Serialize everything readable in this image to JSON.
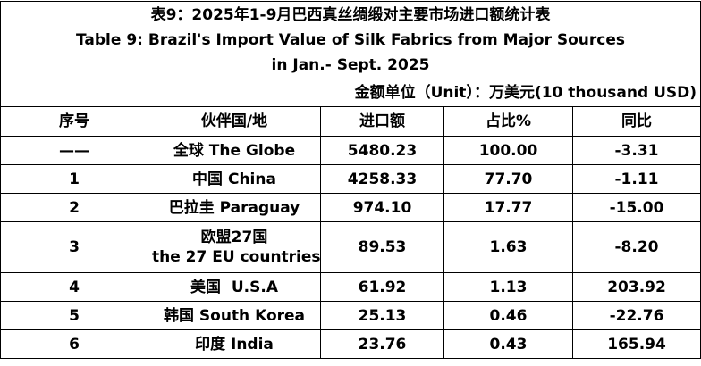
{
  "table": {
    "title": [
      "表9：2025年1-9月巴西真丝绸缎对主要市场进口额统计表",
      "Table 9: Brazil's Import Value of Silk Fabrics from Major Sources",
      "in Jan.- Sept. 2025"
    ],
    "unit": "金额单位（Unit）：万美元(10 thousand USD)",
    "header": [
      "序号",
      "伙伴国/地",
      "进口额",
      "占比%",
      "同比"
    ],
    "rows": [
      [
        "——",
        "全球 The Globe",
        "5480.23",
        "100.00",
        "-3.31"
      ],
      [
        "1",
        "中国 China",
        "4258.33",
        "77.70",
        "-1.11"
      ],
      [
        "2",
        "巴拉圭 Paraguay",
        "974.10",
        "17.77",
        "-15.00"
      ],
      [
        "3",
        [
          "欧盟27国",
          "the 27 EU countries"
        ],
        "89.53",
        "1.63",
        "-8.20"
      ],
      [
        "4",
        "美国  U.S.A",
        "61.92",
        "1.13",
        "203.92"
      ],
      [
        "5",
        "韩国 South Korea",
        "25.13",
        "0.46",
        "-22.76"
      ],
      [
        "6",
        "印度 India",
        "23.76",
        "0.43",
        "165.94"
      ]
    ]
  }
}
